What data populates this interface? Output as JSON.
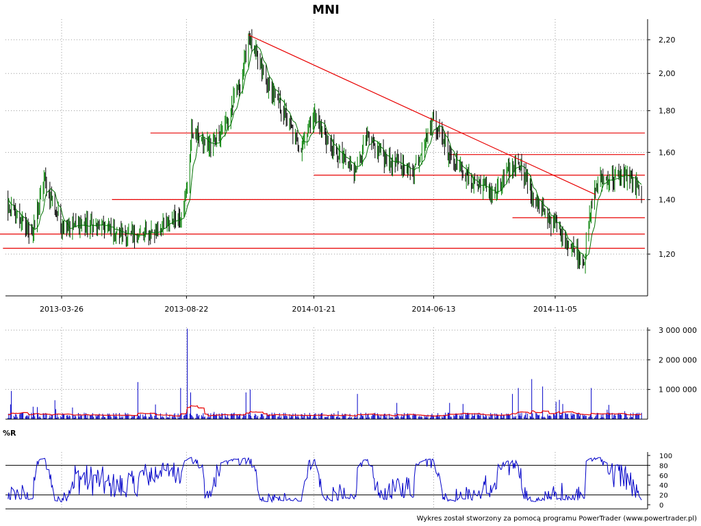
{
  "chart_data": [
    {
      "panel": "price",
      "type": "candlestick",
      "title": "MNI",
      "ylim": [
        1.05,
        2.3
      ],
      "yticks": [
        "1,20",
        "1,40",
        "1,60",
        "1,80",
        "2,00",
        "2,20"
      ],
      "ytick_values": [
        1.2,
        1.4,
        1.6,
        1.8,
        2.0,
        2.2
      ],
      "xticks": [
        "2013-03-26",
        "2013-08-22",
        "2014-01-21",
        "2014-06-13",
        "2014-11-05"
      ],
      "grid": true,
      "key_points": [
        {
          "date": "2013-01-02",
          "close": 1.44
        },
        {
          "date": "2013-02-20",
          "close": 1.27
        },
        {
          "date": "2013-03-05",
          "close": 1.48
        },
        {
          "date": "2013-03-26",
          "close": 1.3
        },
        {
          "date": "2013-05-10",
          "close": 1.3
        },
        {
          "date": "2013-06-20",
          "close": 1.26
        },
        {
          "date": "2013-07-15",
          "close": 1.28
        },
        {
          "date": "2013-08-15",
          "close": 1.34
        },
        {
          "date": "2013-08-22",
          "close": 1.42
        },
        {
          "date": "2013-08-28",
          "close": 1.7
        },
        {
          "date": "2013-09-20",
          "close": 1.62
        },
        {
          "date": "2013-10-10",
          "close": 1.75
        },
        {
          "date": "2013-10-28",
          "close": 2.0
        },
        {
          "date": "2013-11-04",
          "close": 2.22
        },
        {
          "date": "2013-11-25",
          "close": 1.95
        },
        {
          "date": "2013-12-15",
          "close": 1.8
        },
        {
          "date": "2014-01-05",
          "close": 1.62
        },
        {
          "date": "2014-01-21",
          "close": 1.78
        },
        {
          "date": "2014-02-10",
          "close": 1.62
        },
        {
          "date": "2014-03-10",
          "close": 1.52
        },
        {
          "date": "2014-03-25",
          "close": 1.66
        },
        {
          "date": "2014-04-20",
          "close": 1.56
        },
        {
          "date": "2014-05-20",
          "close": 1.52
        },
        {
          "date": "2014-06-13",
          "close": 1.76
        },
        {
          "date": "2014-07-01",
          "close": 1.6
        },
        {
          "date": "2014-07-25",
          "close": 1.48
        },
        {
          "date": "2014-08-25",
          "close": 1.42
        },
        {
          "date": "2014-09-22",
          "close": 1.57
        },
        {
          "date": "2014-10-10",
          "close": 1.4
        },
        {
          "date": "2014-11-05",
          "close": 1.3
        },
        {
          "date": "2014-11-25",
          "close": 1.22
        },
        {
          "date": "2014-12-10",
          "close": 1.18
        },
        {
          "date": "2014-12-20",
          "close": 1.42
        },
        {
          "date": "2014-12-30",
          "close": 1.48
        },
        {
          "date": "2015-01-31",
          "close": 1.5
        },
        {
          "date": "2015-02-16",
          "close": 1.42
        }
      ],
      "horizontal_lines": [
        {
          "value": 1.69,
          "from": "2013-07-10",
          "to": "2015-02-20"
        },
        {
          "value": 1.59,
          "from": "2014-07-01",
          "to": "2015-02-20"
        },
        {
          "value": 1.5,
          "from": "2014-01-21",
          "to": "2015-02-20"
        },
        {
          "value": 1.4,
          "from": "2013-05-25",
          "to": "2015-02-20"
        },
        {
          "value": 1.33,
          "from": "2014-09-15",
          "to": "2015-02-20"
        },
        {
          "value": 1.27,
          "from": "2013-01-06",
          "to": "2015-02-20"
        },
        {
          "value": 1.22,
          "from": "2013-01-15",
          "to": "2015-02-20"
        }
      ],
      "trend_line": {
        "from": {
          "date": "2013-11-04",
          "value": 2.23
        },
        "to": {
          "date": "2014-12-23",
          "value": 1.42
        }
      },
      "colors": {
        "up": "#008000",
        "down": "#000000",
        "support": "#e80000",
        "trend": "#e80000"
      }
    },
    {
      "panel": "volume",
      "type": "bar",
      "ylim": [
        0,
        3100000
      ],
      "yticks": [
        "1 000 000",
        "2 000 000",
        "3 000 000"
      ],
      "ytick_values": [
        1000000,
        2000000,
        3000000
      ],
      "spikes": [
        {
          "date": "2013-01-25",
          "value": 950000
        },
        {
          "date": "2013-02-20",
          "value": 420000
        },
        {
          "date": "2013-06-25",
          "value": 1250000
        },
        {
          "date": "2013-08-15",
          "value": 1050000
        },
        {
          "date": "2013-08-23",
          "value": 3050000
        },
        {
          "date": "2013-08-27",
          "value": 900000
        },
        {
          "date": "2013-11-01",
          "value": 900000
        },
        {
          "date": "2013-11-06",
          "value": 1000000
        },
        {
          "date": "2014-03-14",
          "value": 850000
        },
        {
          "date": "2014-09-15",
          "value": 850000
        },
        {
          "date": "2014-09-22",
          "value": 1050000
        },
        {
          "date": "2014-10-08",
          "value": 1350000
        },
        {
          "date": "2014-10-21",
          "value": 1100000
        },
        {
          "date": "2014-11-10",
          "value": 650000
        },
        {
          "date": "2014-12-18",
          "value": 1050000
        }
      ],
      "colors": {
        "bars": "#0000c8",
        "average": "#e80000"
      }
    },
    {
      "panel": "williams",
      "type": "line",
      "label": "%R",
      "ylim": [
        0,
        100
      ],
      "yticks": [
        "0",
        "20",
        "40",
        "60",
        "80",
        "100"
      ],
      "ytick_values": [
        0,
        20,
        40,
        60,
        80,
        100
      ],
      "reference_lines": [
        20,
        80
      ],
      "colors": {
        "line": "#0000c8",
        "reference": "#000000"
      }
    }
  ],
  "footer": "Wykres został stworzony za pomocą programu PowerTrader (www.powertrader.pl)"
}
